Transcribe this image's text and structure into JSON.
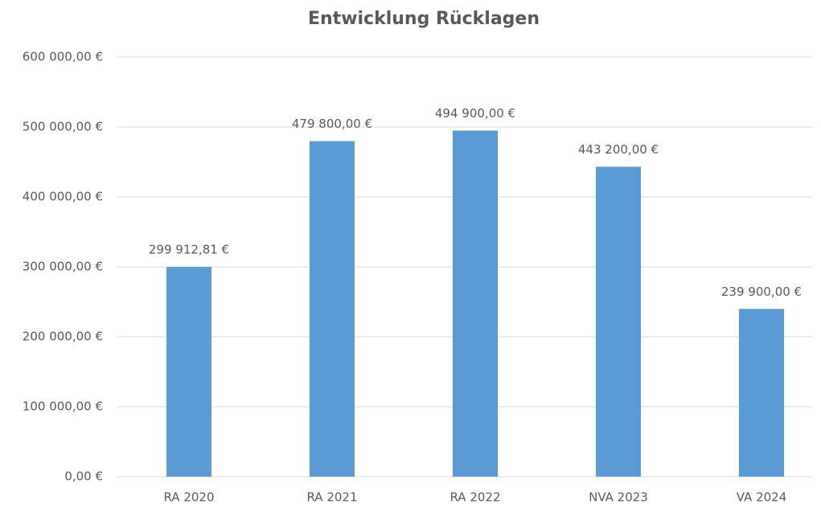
{
  "chart_data": {
    "type": "bar",
    "title": "Entwicklung Rücklagen",
    "categories": [
      "RA 2020",
      "RA 2021",
      "RA 2022",
      "NVA 2023",
      "VA 2024"
    ],
    "values": [
      299912.81,
      479800,
      494900,
      443200,
      239900
    ],
    "value_labels": [
      "299 912,81 €",
      "479 800,00 €",
      "494 900,00 €",
      "443 200,00 €",
      "239 900,00 €"
    ],
    "color": "#5b9bd5",
    "ylim": [
      0,
      600000
    ],
    "yticks": [
      {
        "value": 0,
        "label": "0,00 €"
      },
      {
        "value": 100000,
        "label": "100 000,00 €"
      },
      {
        "value": 200000,
        "label": "200 000,00 €"
      },
      {
        "value": 300000,
        "label": "300 000,00 €"
      },
      {
        "value": 400000,
        "label": "400 000,00 €"
      },
      {
        "value": 500000,
        "label": "500 000,00 €"
      },
      {
        "value": 600000,
        "label": "600 000,00 €"
      }
    ],
    "grid": true
  }
}
